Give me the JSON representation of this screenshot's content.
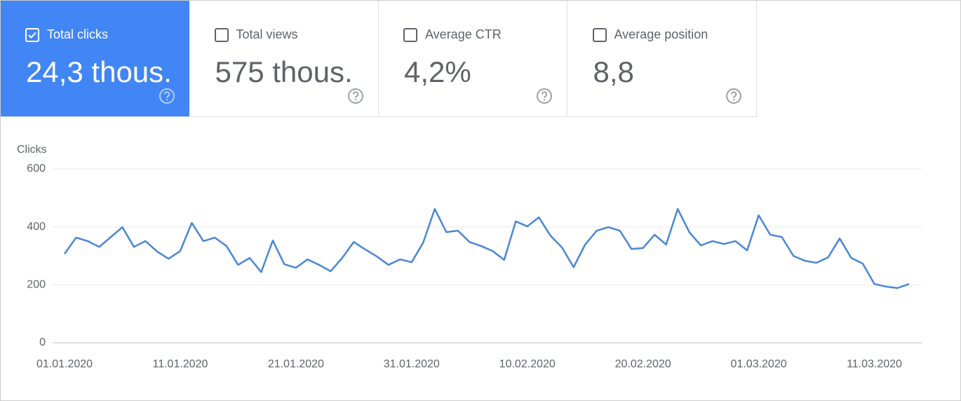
{
  "cards": [
    {
      "label": "Total clicks",
      "value": "24,3 thous.",
      "checked": true,
      "color": "#4285f4"
    },
    {
      "label": "Total views",
      "value": "575 thous.",
      "checked": false
    },
    {
      "label": "Average CTR",
      "value": "4,2%",
      "checked": false
    },
    {
      "label": "Average position",
      "value": "8,8",
      "checked": false
    }
  ],
  "chart_data": {
    "type": "line",
    "y_label": "Clicks",
    "color": "#4a86d8",
    "grid": true,
    "ylim": [
      0,
      600
    ],
    "yticks": [
      0,
      200,
      400,
      600
    ],
    "categories": [
      "01.01.2020",
      null,
      null,
      null,
      null,
      null,
      null,
      null,
      null,
      null,
      "11.01.2020",
      null,
      null,
      null,
      null,
      null,
      null,
      null,
      null,
      null,
      "21.01.2020",
      null,
      null,
      null,
      null,
      null,
      null,
      null,
      null,
      null,
      "31.01.2020",
      null,
      null,
      null,
      null,
      null,
      null,
      null,
      null,
      null,
      "10.02.2020",
      null,
      null,
      null,
      null,
      null,
      null,
      null,
      null,
      null,
      "20.02.2020",
      null,
      null,
      null,
      null,
      null,
      null,
      null,
      null,
      null,
      "01.03.2020",
      null,
      null,
      null,
      null,
      null,
      null,
      null,
      null,
      null,
      "11.03.2020",
      null,
      null,
      null
    ],
    "values": [
      307,
      363,
      351,
      331,
      365,
      399,
      331,
      351,
      315,
      290,
      317,
      414,
      351,
      363,
      334,
      269,
      293,
      244,
      353,
      271,
      259,
      288,
      269,
      247,
      293,
      348,
      322,
      298,
      269,
      288,
      278,
      346,
      462,
      382,
      387,
      348,
      334,
      317,
      286,
      419,
      402,
      433,
      370,
      329,
      261,
      339,
      387,
      399,
      387,
      324,
      327,
      373,
      339,
      462,
      382,
      336,
      351,
      341,
      351,
      319,
      440,
      373,
      365,
      300,
      283,
      276,
      295,
      360,
      293,
      273,
      203,
      194,
      189,
      203
    ]
  }
}
